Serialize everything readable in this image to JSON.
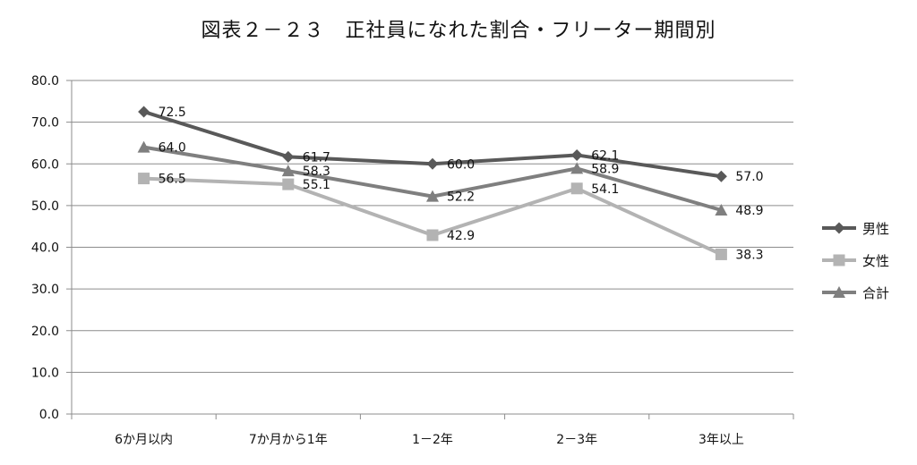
{
  "chart_data": {
    "type": "line",
    "title": "図表２－２３　正社員になれた割合・フリーター期間別",
    "categories": [
      "6か月以内",
      "7か月から1年",
      "1－2年",
      "2－3年",
      "3年以上"
    ],
    "ylim": [
      0,
      80
    ],
    "yticks": [
      "0.0",
      "10.0",
      "20.0",
      "30.0",
      "40.0",
      "50.0",
      "60.0",
      "70.0",
      "80.0"
    ],
    "grid": true,
    "legend_position": "right",
    "series": [
      {
        "name": "男性",
        "values": [
          72.5,
          61.7,
          60.0,
          62.1,
          57.0
        ],
        "labels": [
          "72.5",
          "61.7",
          "60.0",
          "62.1",
          "57.0"
        ],
        "color": "#595959",
        "marker": "diamond"
      },
      {
        "name": "女性",
        "values": [
          56.5,
          55.1,
          42.9,
          54.1,
          38.3
        ],
        "labels": [
          "56.5",
          "55.1",
          "42.9",
          "54.1",
          "38.3"
        ],
        "color": "#b3b3b3",
        "marker": "square"
      },
      {
        "name": "合計",
        "values": [
          64.0,
          58.3,
          52.2,
          58.9,
          48.9
        ],
        "labels": [
          "64.0",
          "58.3",
          "52.2",
          "58.9",
          "48.9"
        ],
        "color": "#7f7f7f",
        "marker": "triangle"
      }
    ]
  }
}
